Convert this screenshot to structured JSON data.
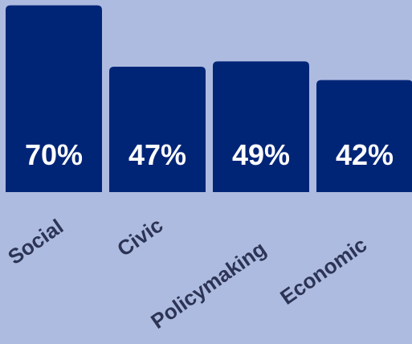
{
  "chart_data": {
    "type": "bar",
    "categories": [
      "Social",
      "Civic",
      "Policymaking",
      "Economic"
    ],
    "values": [
      70,
      47,
      49,
      42
    ],
    "value_labels": [
      "70%",
      "47%",
      "49%",
      "42%"
    ],
    "title": "",
    "xlabel": "",
    "ylabel": "",
    "ylim": [
      0,
      72
    ],
    "grid": false,
    "legend": "none",
    "colors": {
      "background": "#aebbe0",
      "bar": "#002577",
      "value_label": "#ffffff",
      "tick_label": "#2c3455"
    }
  }
}
